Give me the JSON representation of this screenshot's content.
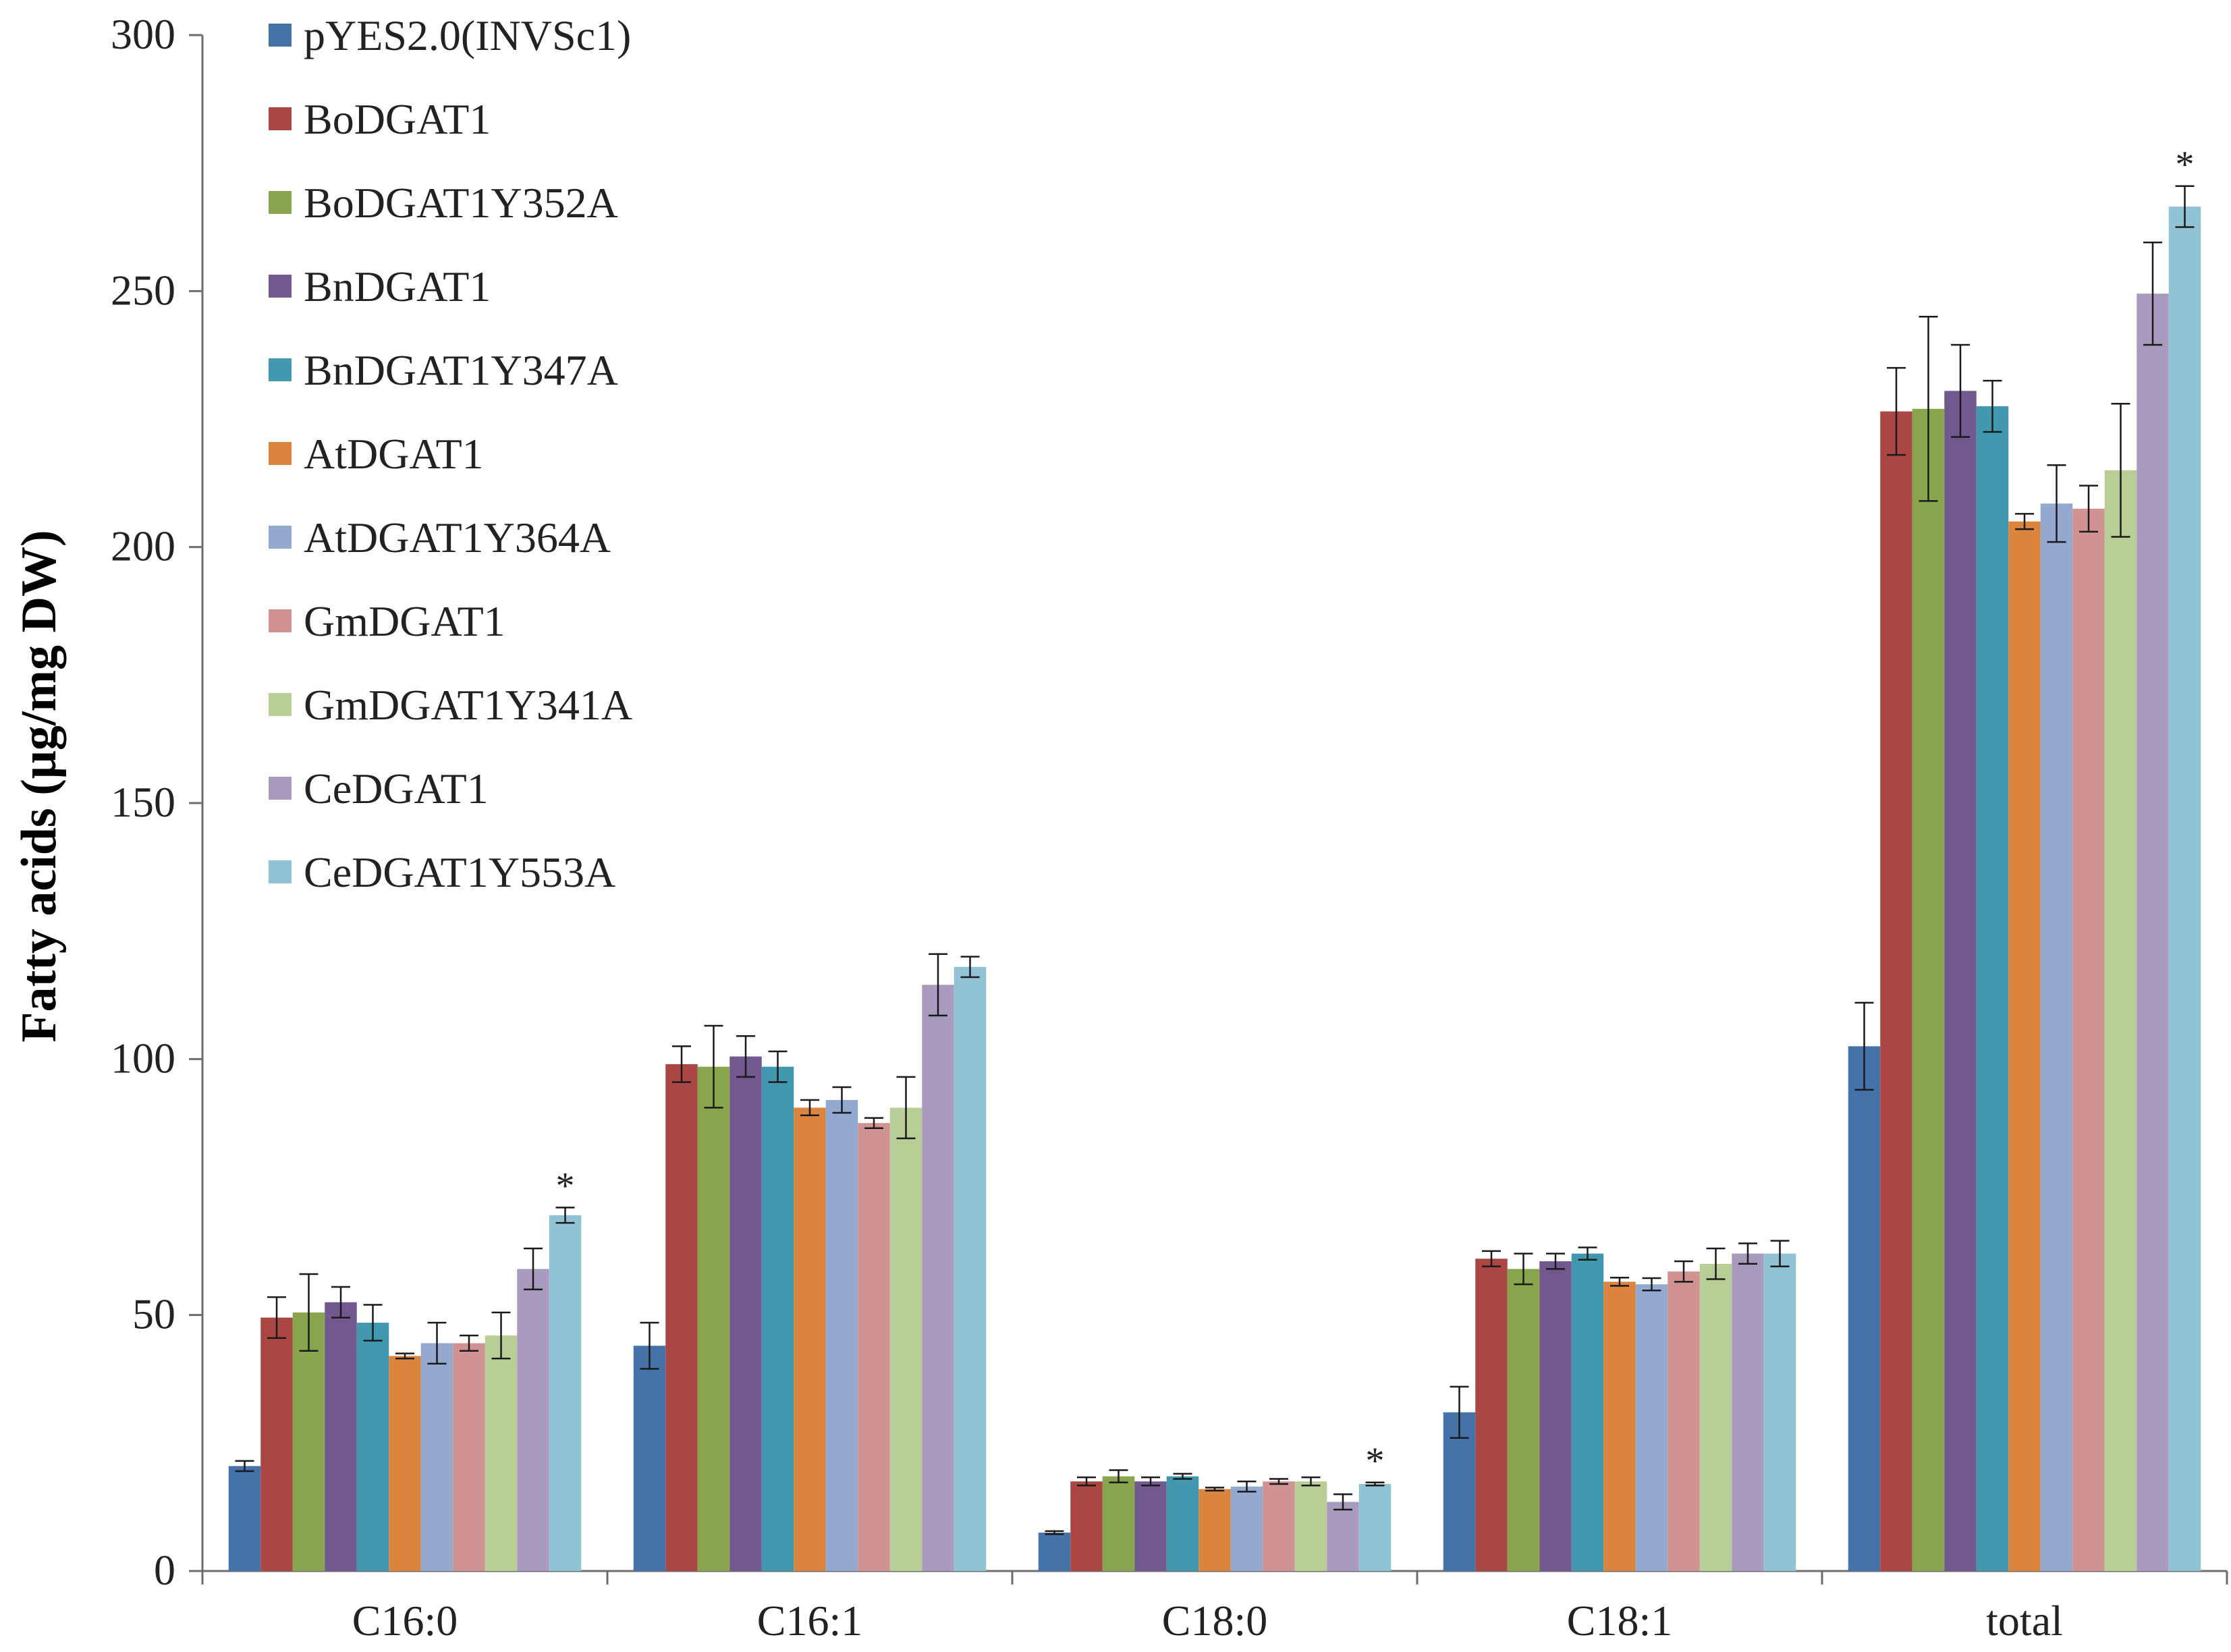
{
  "chart_data": {
    "type": "bar",
    "title": "",
    "xlabel": "",
    "ylabel": "Fatty  acids (μg/mg DW)",
    "ylim": [
      0,
      300
    ],
    "yticks": [
      0,
      50,
      100,
      150,
      200,
      250,
      300
    ],
    "grid": false,
    "legend_position": "top-left",
    "categories": [
      "C16:0",
      "C16:1",
      "C18:0",
      "C18:1",
      "total"
    ],
    "series": [
      {
        "name": "pYES2.0(INVSc1)",
        "color": "#4572A7",
        "values": [
          20.5,
          44,
          7.5,
          31,
          102.5
        ],
        "errors": [
          1,
          4.5,
          0.3,
          5,
          8.5
        ],
        "marks": [
          "",
          "",
          "",
          "",
          ""
        ]
      },
      {
        "name": "BoDGAT1",
        "color": "#AA4643",
        "values": [
          49.5,
          99,
          17.5,
          61,
          226.5
        ],
        "errors": [
          4,
          3.5,
          0.8,
          1.5,
          8.5
        ],
        "marks": [
          "",
          "",
          "",
          "",
          ""
        ]
      },
      {
        "name": "BoDGAT1Y352A",
        "color": "#89A54E",
        "values": [
          50.5,
          98.5,
          18.5,
          59,
          227
        ],
        "errors": [
          7.5,
          8,
          1.2,
          3,
          18
        ],
        "marks": [
          "",
          "",
          "",
          "",
          ""
        ]
      },
      {
        "name": "BnDGAT1",
        "color": "#71588F",
        "values": [
          52.5,
          100.5,
          17.5,
          60.5,
          230.5
        ],
        "errors": [
          3,
          4,
          0.8,
          1.5,
          9
        ],
        "marks": [
          "",
          "",
          "",
          "",
          ""
        ]
      },
      {
        "name": "BnDGAT1Y347A",
        "color": "#4198AF",
        "values": [
          48.5,
          98.5,
          18.5,
          62,
          227.5
        ],
        "errors": [
          3.5,
          3,
          0.5,
          1.2,
          5
        ],
        "marks": [
          "",
          "",
          "",
          "",
          ""
        ]
      },
      {
        "name": "AtDGAT1",
        "color": "#DB843D",
        "values": [
          42,
          90.5,
          16,
          56.5,
          205
        ],
        "errors": [
          0.5,
          1.5,
          0.3,
          0.8,
          1.5
        ],
        "marks": [
          "",
          "",
          "",
          "",
          ""
        ]
      },
      {
        "name": "AtDGAT1Y364A",
        "color": "#93A9CF",
        "values": [
          44.5,
          92,
          16.5,
          56,
          208.5
        ],
        "errors": [
          4,
          2.5,
          1,
          1.2,
          7.5
        ],
        "marks": [
          "",
          "",
          "",
          "",
          ""
        ]
      },
      {
        "name": "GmDGAT1",
        "color": "#D19392",
        "values": [
          44.5,
          87.5,
          17.5,
          58.5,
          207.5
        ],
        "errors": [
          1.5,
          1,
          0.5,
          2,
          4.5
        ],
        "marks": [
          "",
          "",
          "",
          "",
          ""
        ]
      },
      {
        "name": "GmDGAT1Y341A",
        "color": "#B9CD96",
        "values": [
          46,
          90.5,
          17.5,
          60,
          215
        ],
        "errors": [
          4.5,
          6,
          0.8,
          3,
          13
        ],
        "marks": [
          "",
          "",
          "",
          "",
          ""
        ]
      },
      {
        "name": "CeDGAT1",
        "color": "#A99BBD",
        "values": [
          59,
          114.5,
          13.5,
          62,
          249.5
        ],
        "errors": [
          4,
          6,
          1.5,
          2,
          10
        ],
        "marks": [
          "",
          "",
          "",
          "",
          ""
        ]
      },
      {
        "name": "CeDGAT1Y553A",
        "color": "#91C3D5",
        "values": [
          69.5,
          118,
          17,
          62,
          266.5
        ],
        "errors": [
          1.5,
          2,
          0.3,
          2.5,
          4
        ],
        "marks": [
          "*",
          "",
          "*",
          "",
          "*"
        ]
      }
    ]
  }
}
